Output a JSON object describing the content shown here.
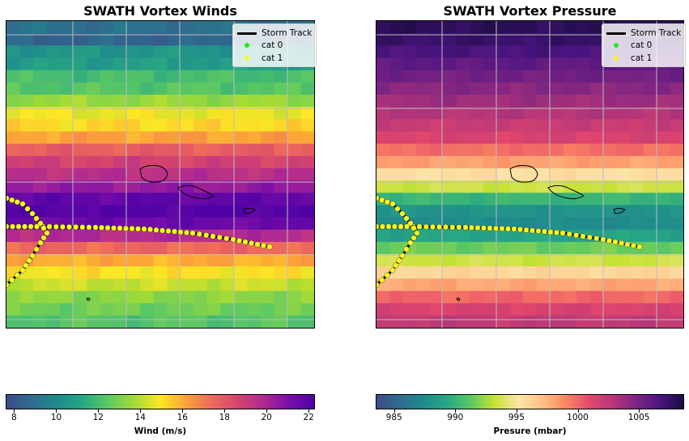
{
  "chart_data": [
    {
      "type": "heatmap",
      "title": "SWATH Vortex Winds",
      "colormap": "viridis-plasma",
      "colorbar": {
        "label": "Wind (m/s)",
        "range": [
          7.6,
          22.3
        ],
        "ticks": [
          "8",
          "10",
          "12",
          "14",
          "16",
          "18",
          "20",
          "22"
        ]
      },
      "row_values": [
        9,
        8.5,
        10.5,
        10.8,
        12,
        12.3,
        13.5,
        14.7,
        15.2,
        16.2,
        17.8,
        18.8,
        19.6,
        20.5,
        21.8,
        22.2,
        21.5,
        19.8,
        17.5,
        16,
        15,
        14.2,
        13.3,
        12.8,
        12.3
      ],
      "legend": {
        "placement": "top-right",
        "entries": [
          "Storm Track",
          "cat 0",
          "cat 1"
        ]
      },
      "grid": true
    },
    {
      "type": "heatmap",
      "title": "SWATH Vortex Pressure",
      "colormap": "magma-viridis",
      "colorbar": {
        "label": "Presure (mbar)",
        "range": [
          983.5,
          1008.7
        ],
        "ticks": [
          "985",
          "990",
          "995",
          "1000",
          "1005"
        ]
      },
      "row_values": [
        1008,
        1007.5,
        1006.8,
        1006,
        1005.3,
        1004.5,
        1003.8,
        1003,
        1002.2,
        1001.5,
        999.8,
        998.2,
        995.5,
        993.5,
        990,
        988,
        987.5,
        989,
        991.5,
        993.5,
        996,
        998,
        1000,
        1001.5,
        1002.5
      ],
      "legend": {
        "placement": "top-right",
        "entries": [
          "Storm Track",
          "cat 0",
          "cat 1"
        ]
      },
      "grid": true
    }
  ],
  "legend_colors": {
    "track": "#000000",
    "cat0": "#22ee22",
    "cat1": "#f7f71e"
  }
}
